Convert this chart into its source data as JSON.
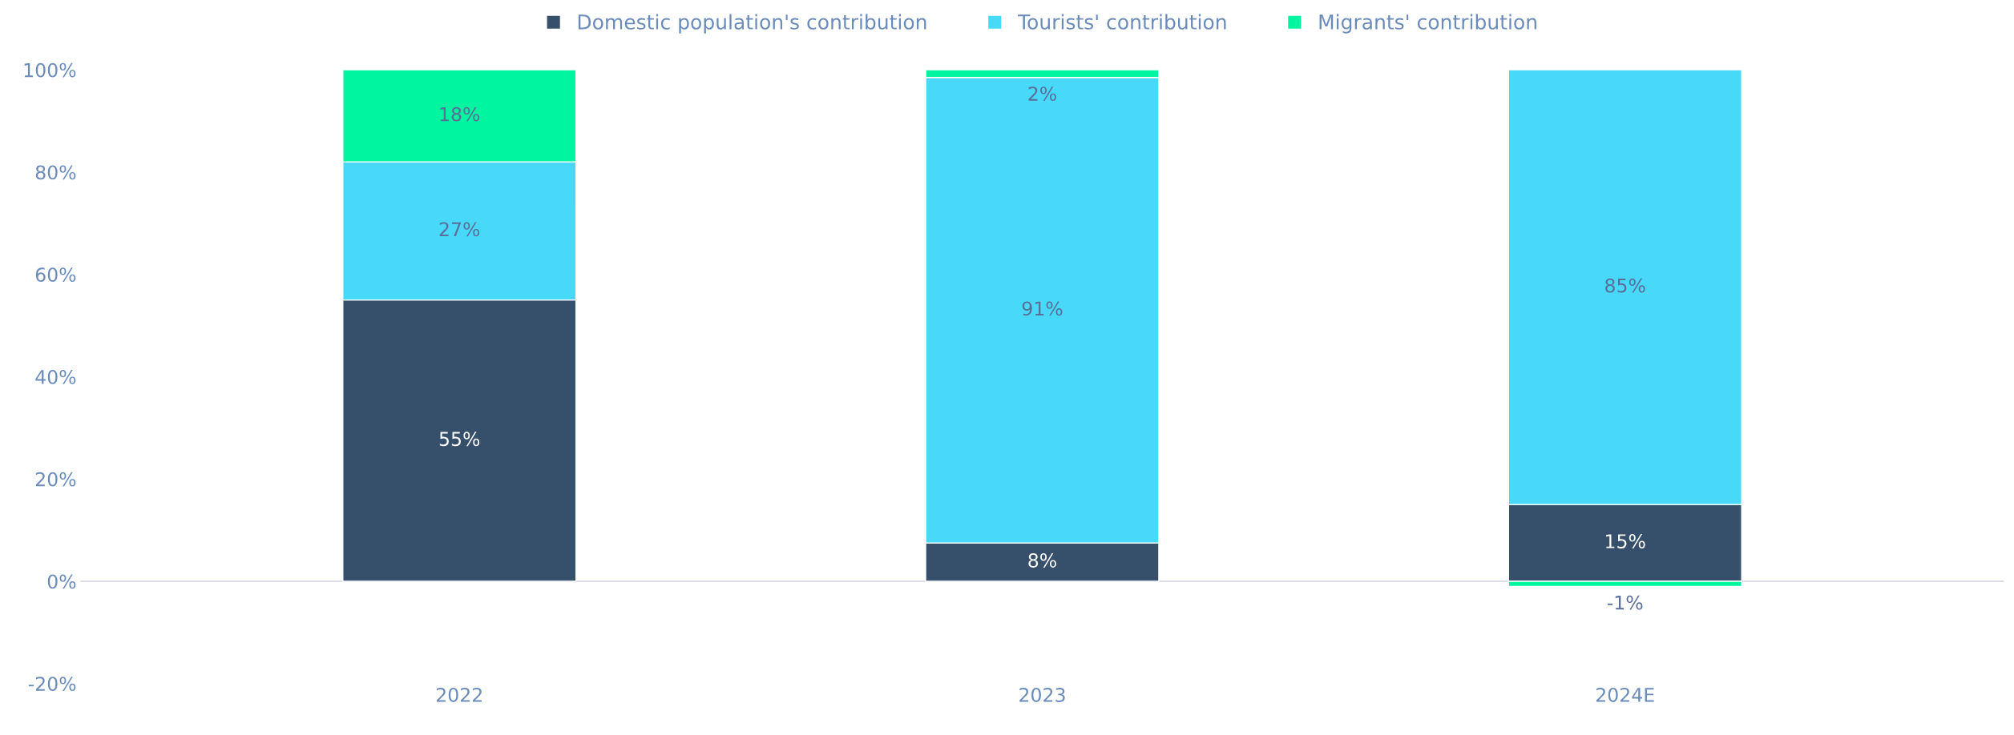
{
  "chart_data": {
    "type": "bar",
    "stacked": true,
    "categories": [
      "2022",
      "2023",
      "2024E"
    ],
    "series": [
      {
        "name": "Domestic population's contribution",
        "color": "#36506c",
        "values": [
          55,
          7.5,
          15
        ],
        "value_labels": [
          "55%",
          "8%",
          "15%"
        ]
      },
      {
        "name": "Tourists' contribution",
        "color": "#48d8f8",
        "values": [
          27,
          91,
          85
        ],
        "value_labels": [
          "27%",
          "91%",
          "85%"
        ]
      },
      {
        "name": "Migrants' contribution",
        "color": "#00f5a0",
        "values": [
          18,
          1.5,
          -1
        ],
        "value_labels": [
          "18%",
          "2%",
          "-1%"
        ]
      }
    ],
    "ylim": [
      -20,
      100
    ],
    "yticks": [
      {
        "value": -20,
        "label": "-20%"
      },
      {
        "value": 0,
        "label": "0%"
      },
      {
        "value": 20,
        "label": "20%"
      },
      {
        "value": 40,
        "label": "40%"
      },
      {
        "value": 60,
        "label": "60%"
      },
      {
        "value": 80,
        "label": "80%"
      },
      {
        "value": 100,
        "label": "100%"
      }
    ],
    "ref_lines": [
      {
        "axis": "y",
        "value": 0,
        "color": "#dcdcea"
      }
    ],
    "legend": "top",
    "grid": false
  }
}
